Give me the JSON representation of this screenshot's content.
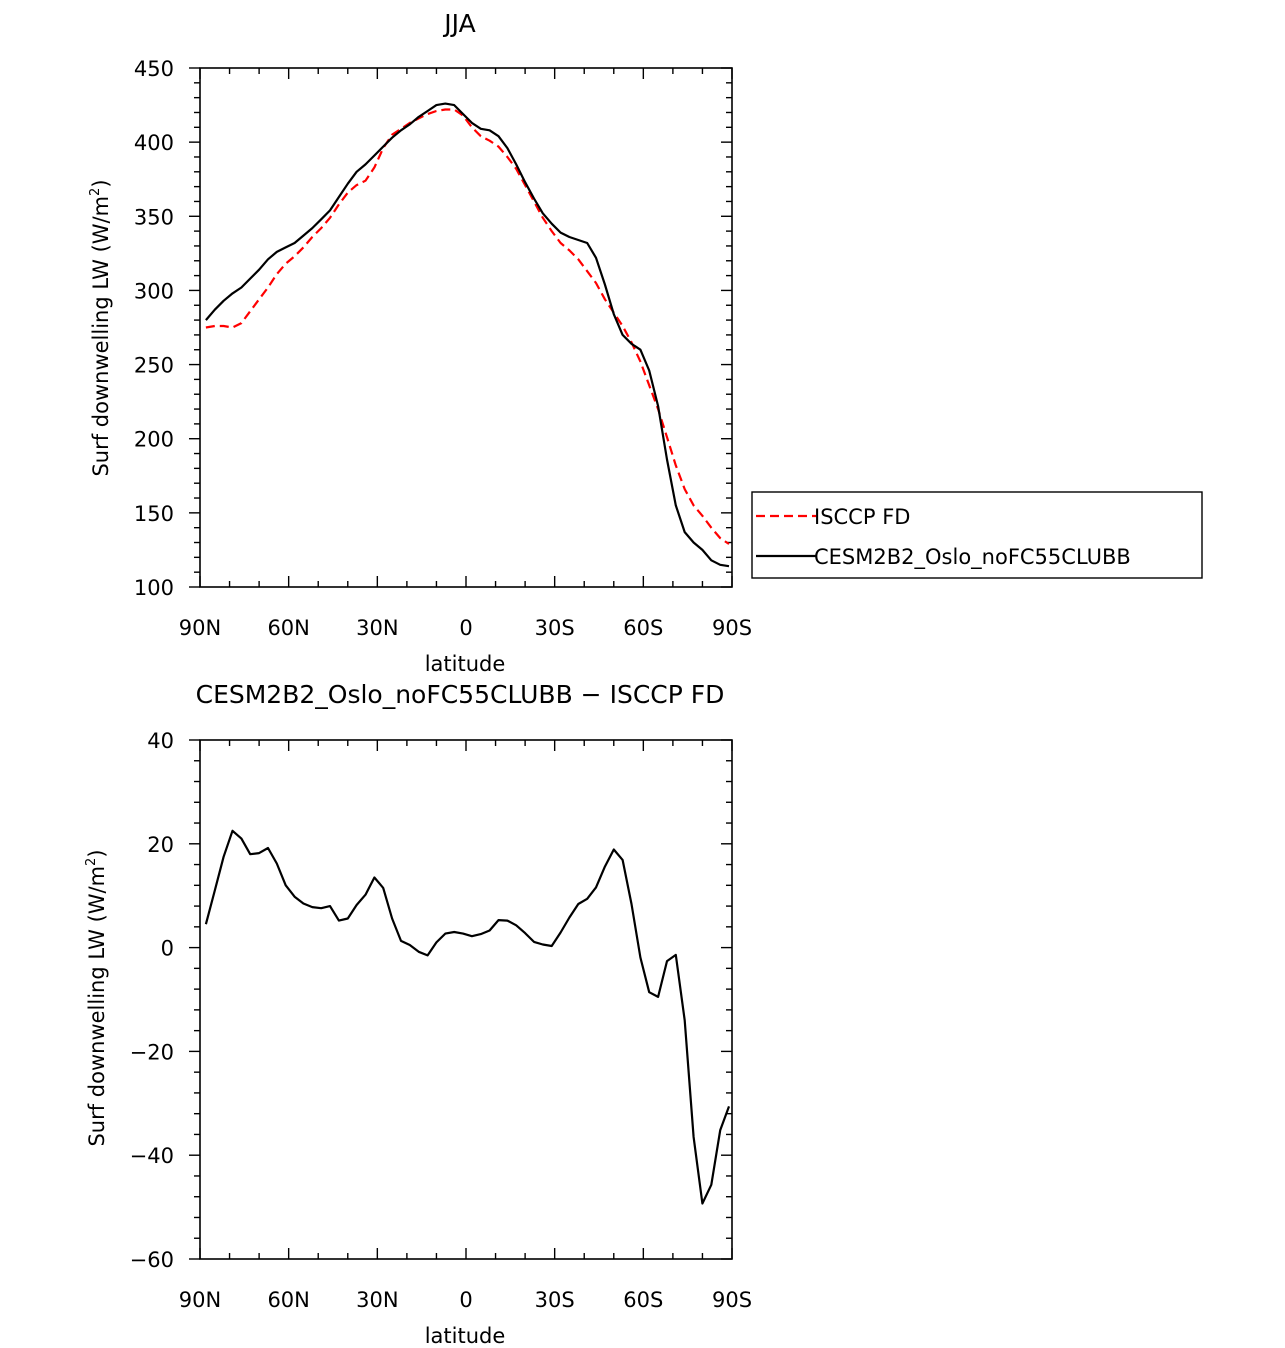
{
  "chart_data": [
    {
      "type": "line",
      "title": "JJA",
      "xlabel": "latitude",
      "ylabel": "Surf downwelling LW (W/m²)",
      "ylabel_parts": {
        "main": "Surf downwelling LW (W/m",
        "sup": "2",
        "end": ")"
      },
      "xlim": [
        -90,
        90
      ],
      "ylim": [
        100,
        450
      ],
      "x_ticks": [
        -90,
        -60,
        -30,
        0,
        30,
        60,
        90
      ],
      "x_tick_labels": [
        "90N",
        "60N",
        "30N",
        "0",
        "30S",
        "60S",
        "90S"
      ],
      "y_ticks": [
        100,
        150,
        200,
        250,
        300,
        350,
        400,
        450
      ],
      "y_tick_labels": [
        "100",
        "150",
        "200",
        "250",
        "300",
        "350",
        "400",
        "450"
      ],
      "legend_position": "right",
      "series": [
        {
          "name": "ISCCP FD",
          "color": "#ff0000",
          "dash": "dashed",
          "x": [
            -88,
            -85,
            -82,
            -79,
            -76,
            -73,
            -70,
            -67,
            -64,
            -61,
            -58,
            -55,
            -52,
            -49,
            -46,
            -43,
            -40,
            -37,
            -34,
            -31,
            -28,
            -25,
            -22,
            -19,
            -16,
            -13,
            -10,
            -7,
            -4,
            -1,
            2,
            5,
            8,
            11,
            14,
            17,
            20,
            23,
            26,
            29,
            32,
            35,
            38,
            41,
            44,
            47,
            50,
            53,
            56,
            59,
            62,
            65,
            68,
            71,
            74,
            77,
            80,
            83,
            86,
            89
          ],
          "y": [
            275,
            276,
            276,
            275,
            278,
            286,
            294,
            302,
            311,
            318,
            323,
            329,
            336,
            342,
            349,
            358,
            366,
            371,
            374,
            383,
            396,
            405,
            409,
            413,
            416,
            419,
            421,
            422,
            422,
            418,
            410,
            404,
            401,
            397,
            390,
            382,
            371,
            360,
            349,
            340,
            332,
            327,
            321,
            313,
            305,
            294,
            285,
            276,
            265,
            252,
            236,
            220,
            201,
            182,
            166,
            155,
            148,
            140,
            133,
            129
          ]
        },
        {
          "name": "CESM2B2_Oslo_noFC55CLUBB",
          "color": "#000000",
          "dash": "solid",
          "x": [
            -88,
            -85,
            -82,
            -79,
            -76,
            -73,
            -70,
            -67,
            -64,
            -61,
            -58,
            -55,
            -52,
            -49,
            -46,
            -43,
            -40,
            -37,
            -34,
            -31,
            -28,
            -25,
            -22,
            -19,
            -16,
            -13,
            -10,
            -7,
            -4,
            -1,
            2,
            5,
            8,
            11,
            14,
            17,
            20,
            23,
            26,
            29,
            32,
            35,
            38,
            41,
            44,
            47,
            50,
            53,
            56,
            59,
            62,
            65,
            68,
            71,
            74,
            77,
            80,
            83,
            86,
            89
          ],
          "y": [
            280,
            287,
            293,
            298,
            302,
            308,
            314,
            321,
            326,
            329,
            332,
            337,
            342,
            348,
            354,
            363,
            372,
            380,
            385,
            391,
            397,
            403,
            408,
            412,
            417,
            421,
            425,
            426,
            425,
            419,
            413,
            409,
            408,
            404,
            396,
            385,
            373,
            362,
            352,
            345,
            339,
            336,
            334,
            332,
            322,
            304,
            284,
            270,
            264,
            260,
            246,
            222,
            186,
            155,
            137,
            130,
            125,
            118,
            115,
            114
          ]
        }
      ]
    },
    {
      "type": "line",
      "title": "CESM2B2_Oslo_noFC55CLUBB − ISCCP FD",
      "xlabel": "latitude",
      "ylabel": "Surf downwelling LW (W/m²)",
      "ylabel_parts": {
        "main": "Surf downwelling LW (W/m",
        "sup": "2",
        "end": ")"
      },
      "xlim": [
        -90,
        90
      ],
      "ylim": [
        -60,
        40
      ],
      "x_ticks": [
        -90,
        -60,
        -30,
        0,
        30,
        60,
        90
      ],
      "x_tick_labels": [
        "90N",
        "60N",
        "30N",
        "0",
        "30S",
        "60S",
        "90S"
      ],
      "y_ticks": [
        -60,
        -40,
        -20,
        0,
        20,
        40
      ],
      "y_tick_labels": [
        "−60",
        "−40",
        "−20",
        "0",
        "20",
        "40"
      ],
      "series": [
        {
          "color": "#000000",
          "dash": "solid",
          "x": [
            -88,
            -85,
            -82,
            -79,
            -76,
            -73,
            -70,
            -67,
            -64,
            -61,
            -58,
            -55,
            -52,
            -49,
            -46,
            -43,
            -40,
            -37,
            -34,
            -31,
            -28,
            -25,
            -22,
            -19,
            -16,
            -13,
            -10,
            -7,
            -4,
            -1,
            2,
            5,
            8,
            11,
            14,
            17,
            20,
            23,
            26,
            29,
            32,
            35,
            38,
            41,
            44,
            47,
            50,
            53,
            56,
            59,
            62,
            65,
            68,
            71,
            74,
            77,
            80,
            83,
            86,
            89
          ],
          "y": [
            4.5,
            11,
            17.5,
            22.5,
            21,
            18,
            18.2,
            19.2,
            16.2,
            12,
            9.8,
            8.5,
            7.8,
            7.6,
            8,
            5.2,
            5.6,
            8.2,
            10.2,
            13.5,
            11.5,
            5.6,
            1.3,
            0.5,
            -0.8,
            -1.5,
            1,
            2.7,
            3,
            2.7,
            2.2,
            2.6,
            3.3,
            5.3,
            5.2,
            4.3,
            2.8,
            1.1,
            0.6,
            0.3,
            2.9,
            5.8,
            8.4,
            9.4,
            11.6,
            15.6,
            18.9,
            16.9,
            8.4,
            -1.9,
            -8.6,
            -9.5,
            -2.6,
            -1.4,
            -14,
            -36.5,
            -49.3,
            -45.7,
            -35.2,
            -30.6
          ]
        }
      ]
    }
  ]
}
